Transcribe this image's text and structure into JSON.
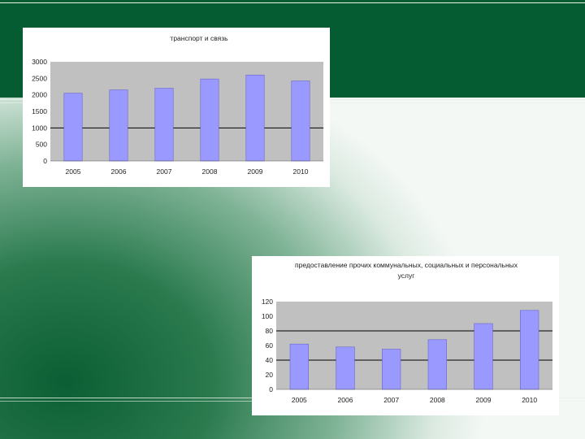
{
  "colors": {
    "band": "#065c32",
    "bar": "#9999ff",
    "plot_bg": "#c0c0c0"
  },
  "chart_data": [
    {
      "type": "bar",
      "title": "транспорт и связь",
      "categories": [
        "2005",
        "2006",
        "2007",
        "2008",
        "2009",
        "2010"
      ],
      "values": [
        2050,
        2150,
        2200,
        2480,
        2600,
        2420
      ],
      "ylim": [
        0,
        3000
      ],
      "yticks": [
        "0",
        "500",
        "1000",
        "1500",
        "2000",
        "2500",
        "3000"
      ],
      "gridlines": [
        1000
      ],
      "grid": true,
      "legend": "none"
    },
    {
      "type": "bar",
      "title_lines": [
        "предоставление прочих коммунальных, социальных и персональных",
        "услуг"
      ],
      "categories": [
        "2005",
        "2006",
        "2007",
        "2008",
        "2009",
        "2010"
      ],
      "values": [
        62,
        58,
        55,
        68,
        90,
        108
      ],
      "ylim": [
        0,
        120
      ],
      "yticks": [
        "0",
        "20",
        "40",
        "60",
        "80",
        "100",
        "120"
      ],
      "gridlines": [
        40,
        80
      ],
      "grid": true,
      "legend": "none"
    }
  ]
}
